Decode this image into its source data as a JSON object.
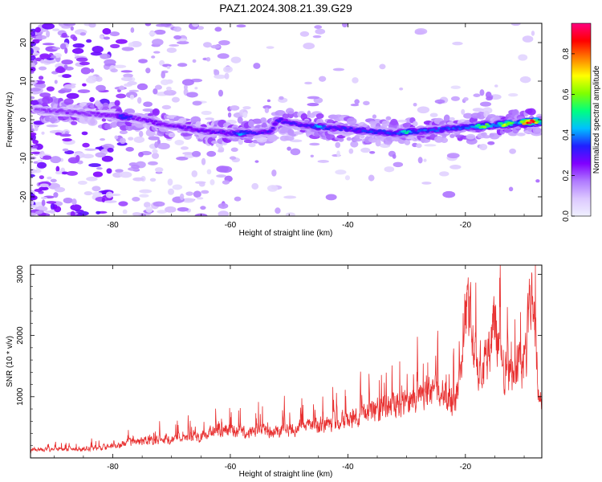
{
  "chart_data": [
    {
      "type": "heatmap",
      "title": "PAZ1.2024.308.21.39.G29",
      "xlabel": "Height of straight line (km)",
      "ylabel": "Frequency (Hz)",
      "xlim": [
        -94,
        -7
      ],
      "ylim": [
        -25,
        25
      ],
      "xticks": [
        -80,
        -60,
        -40,
        -20
      ],
      "yticks": [
        -20,
        -10,
        0,
        10,
        20
      ],
      "colorbar": {
        "label": "Normalized spectral amplitude",
        "range": [
          0,
          0.95
        ],
        "ticks": [
          0.0,
          0.2,
          0.4,
          0.6,
          0.8
        ],
        "colormap": [
          "#f0f0ff",
          "#dcc8ff",
          "#b07aff",
          "#8000ff",
          "#2020ff",
          "#00c0ff",
          "#00ff80",
          "#80ff00",
          "#ffff00",
          "#ff8000",
          "#ff0000",
          "#ff0080"
        ]
      },
      "ridge": {
        "x": [
          -92,
          -88,
          -84,
          -80,
          -76,
          -72,
          -68,
          -64,
          -60,
          -56,
          -53,
          -52,
          -48,
          -44,
          -40,
          -36,
          -32,
          -28,
          -24,
          -20,
          -16,
          -12,
          -8
        ],
        "y": [
          2.5,
          2.0,
          1.5,
          1.0,
          0.5,
          -1.0,
          -2.0,
          -3.0,
          -3.5,
          -3.5,
          -3.0,
          0.0,
          -1.5,
          -2.0,
          -2.5,
          -3.0,
          -3.5,
          -3.0,
          -2.5,
          -2.0,
          -1.5,
          -1.0,
          -0.5
        ]
      },
      "peaks": [
        {
          "x": -9,
          "y": -0.5,
          "amp": 0.95
        },
        {
          "x": -13,
          "y": -0.8,
          "amp": 0.7
        },
        {
          "x": -17,
          "y": -1.5,
          "amp": 0.65
        },
        {
          "x": -30,
          "y": -3.0,
          "amp": 0.5
        },
        {
          "x": -45,
          "y": -1.5,
          "amp": 0.45
        },
        {
          "x": -58,
          "y": -3.5,
          "amp": 0.45
        },
        {
          "x": -78,
          "y": 1.0,
          "amp": 0.4
        }
      ]
    },
    {
      "type": "line",
      "xlabel": "Height of straight line (km)",
      "ylabel": "SNR (10 * v/v)",
      "xlim": [
        -94,
        -7
      ],
      "ylim": [
        0,
        3150
      ],
      "xticks": [
        -80,
        -60,
        -40,
        -20
      ],
      "yticks": [
        1000,
        2000,
        3000
      ],
      "color": "#e83030",
      "series": [
        {
          "x": [
            -94,
            -90,
            -86,
            -82,
            -78,
            -74,
            -70,
            -66,
            -62,
            -58,
            -54,
            -50,
            -46,
            -42,
            -38,
            -34,
            -30,
            -26,
            -24,
            -22,
            -21,
            -20,
            -19,
            -18,
            -16,
            -15,
            -14,
            -12,
            -11,
            -10,
            -9,
            -8.5,
            -8,
            -7.5,
            -7
          ],
          "y": [
            150,
            150,
            160,
            190,
            260,
            320,
            350,
            380,
            500,
            450,
            480,
            520,
            580,
            640,
            800,
            900,
            1000,
            1150,
            1200,
            900,
            1500,
            2900,
            2300,
            1700,
            1900,
            2500,
            1700,
            1400,
            1800,
            1500,
            2800,
            3100,
            2000,
            900,
            1100
          ]
        }
      ]
    }
  ]
}
